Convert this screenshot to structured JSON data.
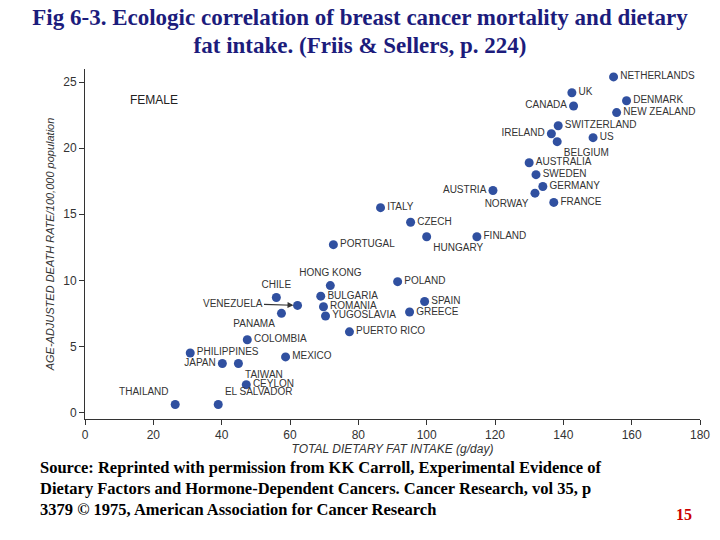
{
  "title": "Fig 6-3. Ecologic correlation of breast cancer mortality and dietary fat intake. (Friis & Sellers, p. 224)",
  "source": [
    "Source: Reprinted with permission from KK Carroll, Experimental Evidence of",
    "Dietary Factors and Hormone-Dependent Cancers. Cancer Research, vol 35, p",
    "3379 © 1975, American Association for Cancer Research"
  ],
  "slide_number": 15,
  "chart_data": {
    "type": "scatter",
    "annotation": "FEMALE",
    "x_label": "TOTAL DIETARY FAT INTAKE (g/day)",
    "y_label": "AGE-ADJUSTED DEATH RATE/100,000 population",
    "point_labels": [
      "NETHERLANDS",
      "UK",
      "CANADA",
      "DENMARK",
      "NEW ZEALAND",
      "SWITZERLAND",
      "IRELAND",
      "US",
      "BELGIUM",
      "AUSTRALIA",
      "SWEDEN",
      "GERMANY",
      "AUSTRIA",
      "NORWAY",
      "FRANCE",
      "ITALY",
      "CZECH",
      "FINLAND",
      "HUNGARY",
      "PORTUGAL",
      "HONG KONG",
      "POLAND",
      "CHILE",
      "BULGARIA",
      "VENEZUELA",
      "ROMANIA",
      "SPAIN",
      "PANAMA",
      "YUGOSLAVIA",
      "GREECE",
      "PUERTO RICO",
      "COLOMBIA",
      "PHILIPPINES",
      "MEXICO",
      "JAPAN",
      "TAIWAN",
      "CEYLON",
      "THAILAND",
      "EL SALVADOR"
    ],
    "x": [
      154.7,
      142.5,
      143,
      158.5,
      155.6,
      138.5,
      136.5,
      148.7,
      138.2,
      130,
      132,
      134,
      119.4,
      131.7,
      137.2,
      86.5,
      95.3,
      114.7,
      100,
      72.7,
      71.8,
      91.5,
      56,
      69,
      62.2,
      69.8,
      99.4,
      57.5,
      70.4,
      95,
      77.4,
      47.5,
      30.8,
      58.7,
      40.2,
      44.9,
      47.2,
      26.4,
      39
    ],
    "values": [
      25.4,
      24.2,
      23.2,
      23.6,
      22.7,
      21.7,
      21.1,
      20.8,
      20.5,
      18.9,
      18,
      17.1,
      16.8,
      16.6,
      15.9,
      15.5,
      14.4,
      13.3,
      13.3,
      12.7,
      9.6,
      9.9,
      8.7,
      8.8,
      8.1,
      8,
      8.4,
      7.5,
      7.3,
      7.6,
      6.1,
      5.5,
      4.5,
      4.2,
      3.7,
      3.7,
      2.1,
      0.6,
      0.6
    ],
    "color": "#3050a0",
    "marker": "circle",
    "xlim": [
      0,
      180
    ],
    "xticks": [
      0,
      20,
      40,
      60,
      80,
      100,
      120,
      140,
      160,
      180
    ],
    "ylim": [
      -0.5,
      26
    ],
    "yticks": [
      0,
      5,
      10,
      15,
      20,
      25
    ],
    "grid": false
  }
}
